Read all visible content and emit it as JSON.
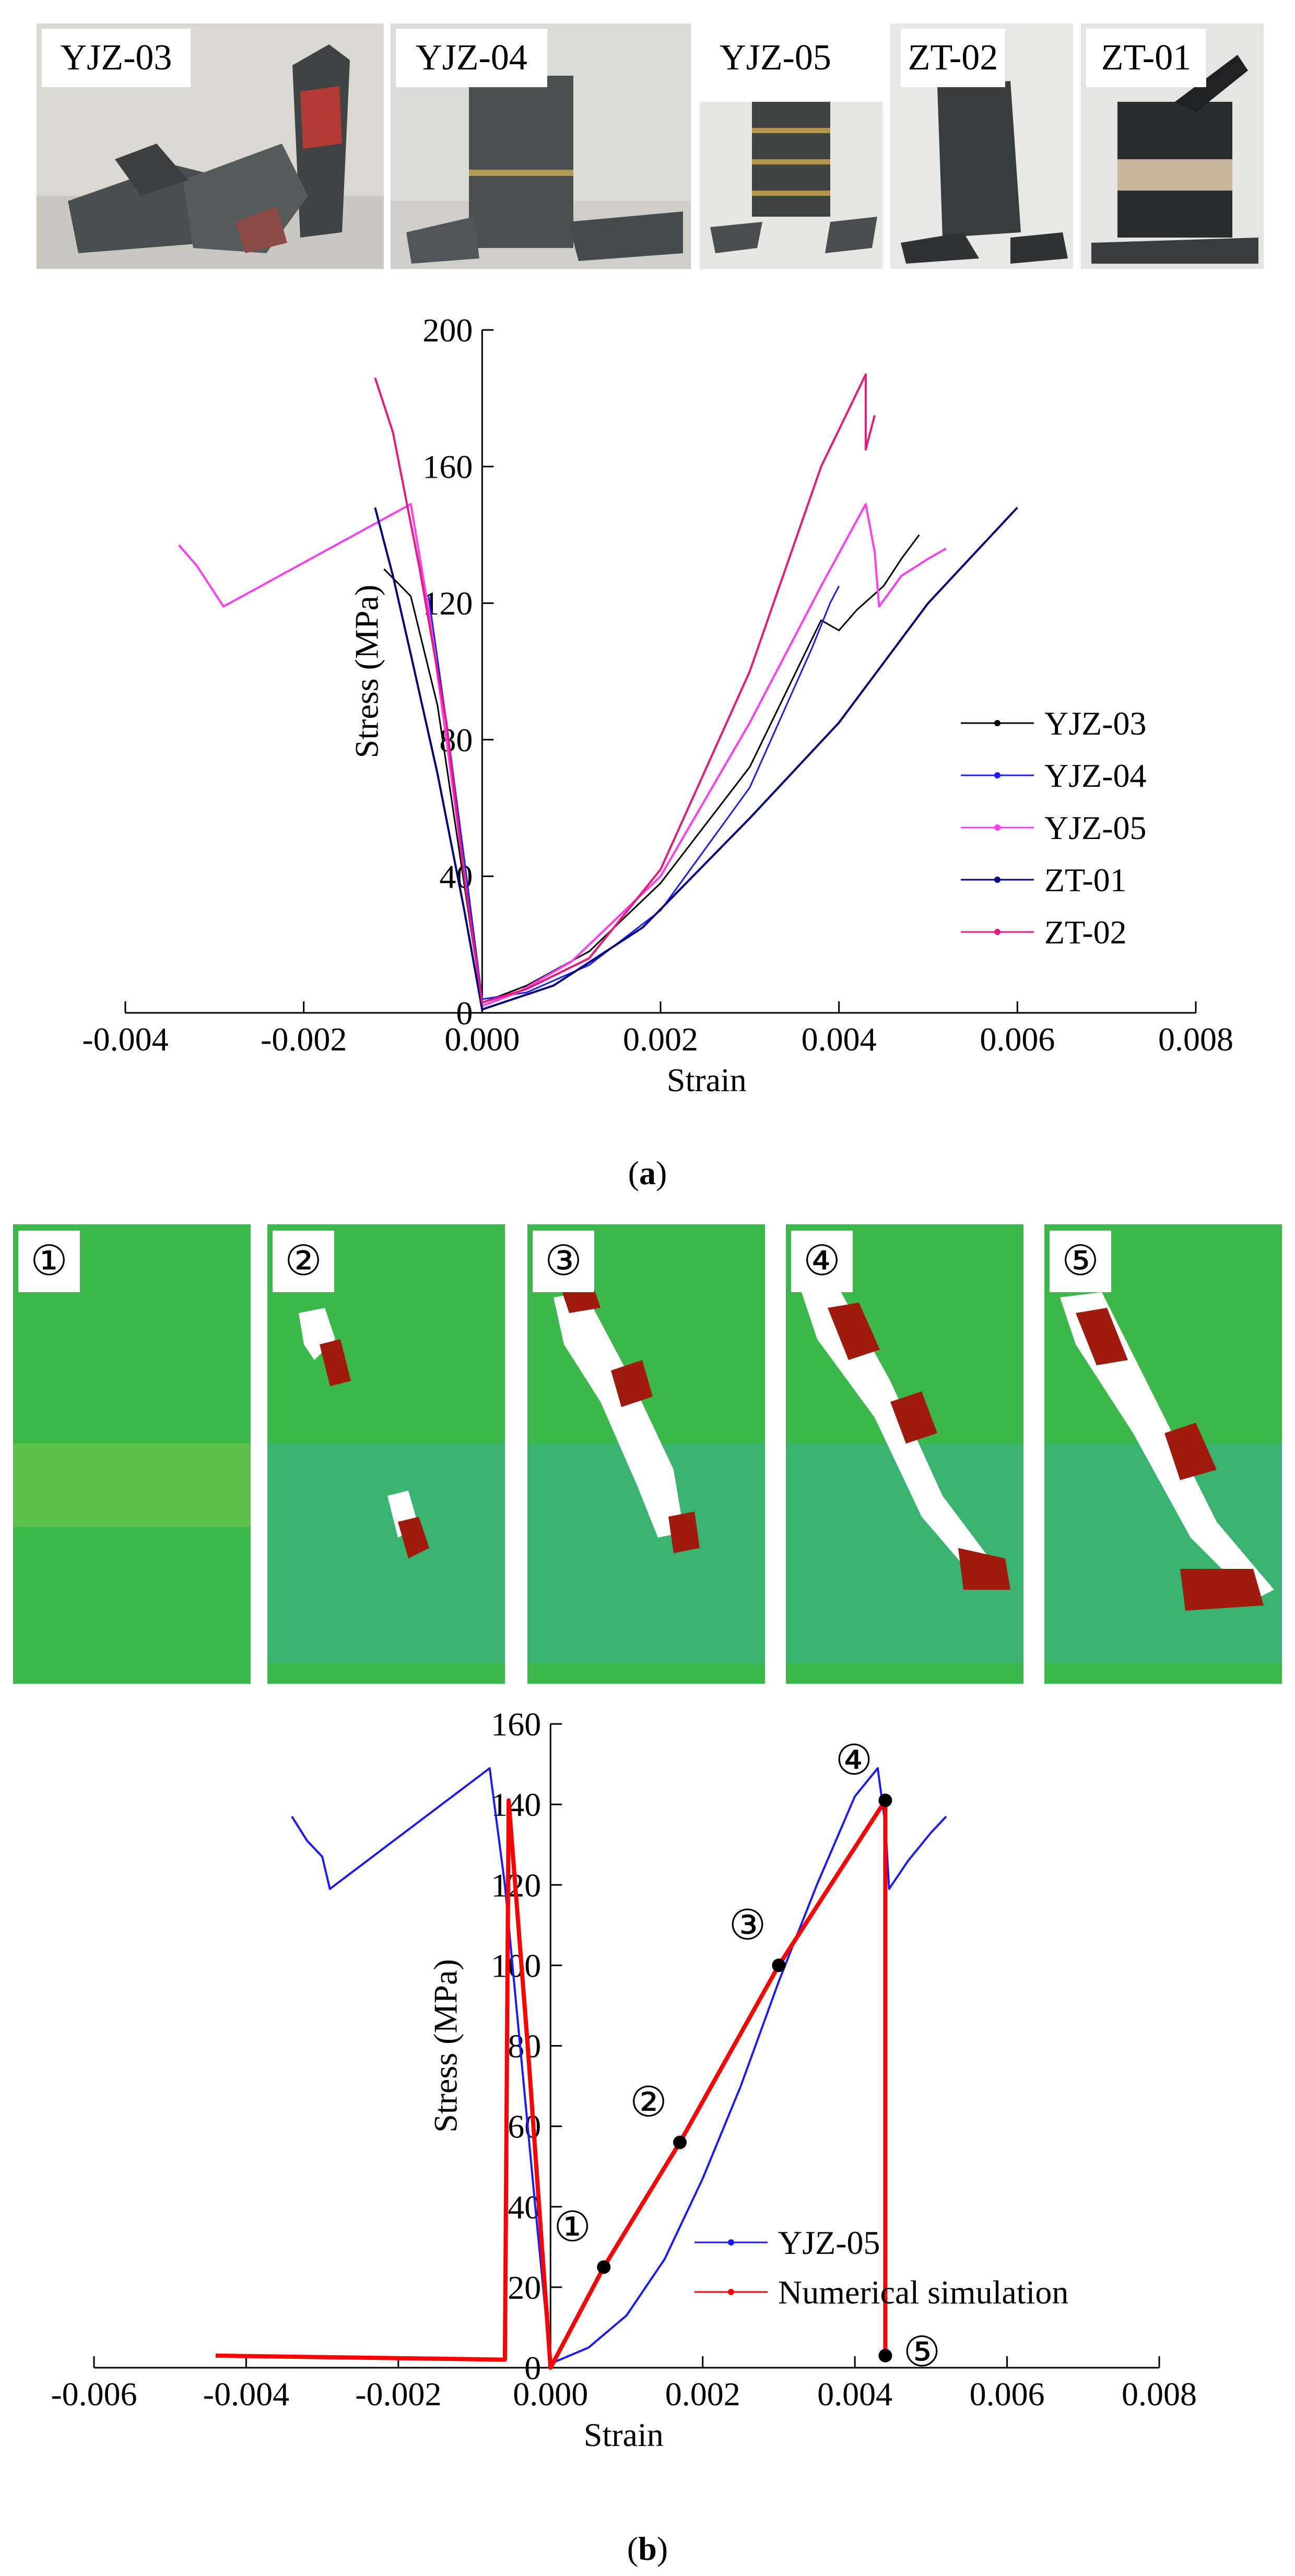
{
  "specimen_photos": [
    {
      "label": "YJZ-03"
    },
    {
      "label": "YJZ-04"
    },
    {
      "label": "YJZ-05"
    },
    {
      "label": "ZT-02"
    },
    {
      "label": "ZT-01"
    }
  ],
  "simulation_panels": [
    {
      "label": "①"
    },
    {
      "label": "②"
    },
    {
      "label": "③"
    },
    {
      "label": "④"
    },
    {
      "label": "⑤"
    }
  ],
  "captions": {
    "a_open": "(",
    "a_letter": "a",
    "a_close": ")",
    "b_open": "(",
    "b_letter": "b",
    "b_close": ")"
  },
  "colors": {
    "black": "#000000",
    "blue": "#1a1aff",
    "magenta": "#ff3ef2",
    "navy": "#000080",
    "pink": "#e8197a",
    "red": "#ff0000",
    "green": "#2fb84a"
  },
  "chart_data": [
    {
      "type": "line",
      "panel": "a",
      "xlabel": "Strain",
      "ylabel": "Stress (MPa)",
      "xlim": [
        -0.004,
        0.008
      ],
      "ylim": [
        0,
        200
      ],
      "xticks": [
        -0.004,
        -0.002,
        0.0,
        0.002,
        0.004,
        0.006,
        0.008
      ],
      "xtick_labels": [
        "-0.004",
        "-0.002",
        "0.000",
        "0.002",
        "0.004",
        "0.006",
        "0.008"
      ],
      "yticks": [
        0,
        40,
        80,
        120,
        160,
        200
      ],
      "ytick_labels": [
        "0",
        "40",
        "80",
        "120",
        "160",
        "200"
      ],
      "legend_position": "right",
      "series": [
        {
          "name": "YJZ-03",
          "color": "#000000",
          "marker": "square",
          "points": [
            [
              -0.0011,
              130
            ],
            [
              -0.0008,
              122
            ],
            [
              -0.0005,
              90
            ],
            [
              -0.0003,
              55
            ],
            [
              -0.0001,
              20
            ],
            [
              0.0,
              3
            ],
            [
              0.0005,
              8
            ],
            [
              0.0012,
              18
            ],
            [
              0.002,
              38
            ],
            [
              0.003,
              72
            ],
            [
              0.0038,
              115
            ],
            [
              0.004,
              112
            ],
            [
              0.0042,
              118
            ],
            [
              0.0045,
              125
            ],
            [
              0.0047,
              133
            ],
            [
              0.0049,
              140
            ]
          ]
        },
        {
          "name": "YJZ-04",
          "color": "#1a1aff",
          "marker": "triangle-up",
          "points": [
            [
              -0.0006,
              122
            ],
            [
              -0.0004,
              85
            ],
            [
              -0.0002,
              45
            ],
            [
              0.0,
              4
            ],
            [
              0.0005,
              6
            ],
            [
              0.0012,
              14
            ],
            [
              0.002,
              30
            ],
            [
              0.003,
              66
            ],
            [
              0.0037,
              107
            ],
            [
              0.0039,
              120
            ],
            [
              0.004,
              125
            ]
          ]
        },
        {
          "name": "YJZ-05",
          "color": "#ff3ef2",
          "marker": "triangle-left",
          "points": [
            [
              -0.0034,
              137
            ],
            [
              -0.0032,
              131
            ],
            [
              -0.0029,
              119
            ],
            [
              -0.0008,
              149
            ],
            [
              -0.0006,
              118
            ],
            [
              -0.0004,
              80
            ],
            [
              -0.0002,
              40
            ],
            [
              0.0,
              2
            ],
            [
              0.0004,
              6
            ],
            [
              0.001,
              15
            ],
            [
              0.002,
              40
            ],
            [
              0.003,
              85
            ],
            [
              0.0038,
              125
            ],
            [
              0.0043,
              149
            ],
            [
              0.0044,
              135
            ],
            [
              0.00445,
              119
            ],
            [
              0.0047,
              128
            ],
            [
              0.005,
              133
            ],
            [
              0.0052,
              136
            ]
          ]
        },
        {
          "name": "ZT-01",
          "color": "#000080",
          "marker": "diamond",
          "points": [
            [
              -0.0012,
              148
            ],
            [
              -0.001,
              128
            ],
            [
              -0.0008,
              105
            ],
            [
              -0.0005,
              70
            ],
            [
              -0.0002,
              30
            ],
            [
              0.0,
              1
            ],
            [
              0.0008,
              8
            ],
            [
              0.0018,
              25
            ],
            [
              0.003,
              57
            ],
            [
              0.004,
              85
            ],
            [
              0.005,
              120
            ],
            [
              0.006,
              148
            ]
          ]
        },
        {
          "name": "ZT-02",
          "color": "#e8197a",
          "marker": "circle",
          "points": [
            [
              -0.0012,
              186
            ],
            [
              -0.001,
              170
            ],
            [
              -0.0007,
              130
            ],
            [
              -0.0004,
              85
            ],
            [
              -0.0002,
              40
            ],
            [
              0.0,
              3
            ],
            [
              0.0005,
              7
            ],
            [
              0.0012,
              16
            ],
            [
              0.002,
              42
            ],
            [
              0.003,
              100
            ],
            [
              0.0038,
              160
            ],
            [
              0.0043,
              187
            ],
            [
              0.0043,
              165
            ],
            [
              0.0044,
              175
            ]
          ]
        }
      ]
    },
    {
      "type": "line",
      "panel": "b",
      "xlabel": "Strain",
      "ylabel": "Stress (MPa)",
      "xlim": [
        -0.006,
        0.008
      ],
      "ylim": [
        0,
        160
      ],
      "xticks": [
        -0.006,
        -0.004,
        -0.002,
        0.0,
        0.002,
        0.004,
        0.006,
        0.008
      ],
      "xtick_labels": [
        "-0.006",
        "-0.004",
        "-0.002",
        "0.000",
        "0.002",
        "0.004",
        "0.006",
        "0.008"
      ],
      "yticks": [
        0,
        20,
        40,
        60,
        80,
        100,
        120,
        140,
        160
      ],
      "ytick_labels": [
        "0",
        "20",
        "40",
        "60",
        "80",
        "100",
        "120",
        "140",
        "160"
      ],
      "legend_position": "bottom-right",
      "series": [
        {
          "name": "YJZ-05",
          "color": "#1a1aff",
          "points": [
            [
              -0.0034,
              137
            ],
            [
              -0.0032,
              131
            ],
            [
              -0.003,
              127
            ],
            [
              -0.0029,
              119
            ],
            [
              -0.0008,
              149
            ],
            [
              -0.0006,
              120
            ],
            [
              -0.0004,
              80
            ],
            [
              -0.0002,
              40
            ],
            [
              0.0,
              1
            ],
            [
              0.0005,
              5
            ],
            [
              0.001,
              13
            ],
            [
              0.0015,
              27
            ],
            [
              0.002,
              47
            ],
            [
              0.0025,
              70
            ],
            [
              0.003,
              96
            ],
            [
              0.0035,
              120
            ],
            [
              0.004,
              142
            ],
            [
              0.0043,
              149
            ],
            [
              0.0044,
              135
            ],
            [
              0.00445,
              119
            ],
            [
              0.0047,
              126
            ],
            [
              0.005,
              133
            ],
            [
              0.0052,
              137
            ]
          ]
        },
        {
          "name": "Numerical simulation",
          "color": "#ff0000",
          "points": [
            [
              -0.0044,
              3
            ],
            [
              -0.0006,
              2
            ],
            [
              -0.00055,
              141
            ],
            [
              -0.0003,
              80
            ],
            [
              0.0,
              0
            ],
            [
              0.0007,
              25
            ],
            [
              0.0017,
              56
            ],
            [
              0.003,
              100
            ],
            [
              0.0044,
              141
            ],
            [
              0.0044,
              3
            ]
          ]
        }
      ],
      "marked_points": [
        {
          "label": "①",
          "x": 0.0007,
          "y": 25
        },
        {
          "label": "②",
          "x": 0.0017,
          "y": 56
        },
        {
          "label": "③",
          "x": 0.003,
          "y": 100
        },
        {
          "label": "④",
          "x": 0.0044,
          "y": 141
        },
        {
          "label": "⑤",
          "x": 0.0044,
          "y": 3
        }
      ]
    }
  ]
}
